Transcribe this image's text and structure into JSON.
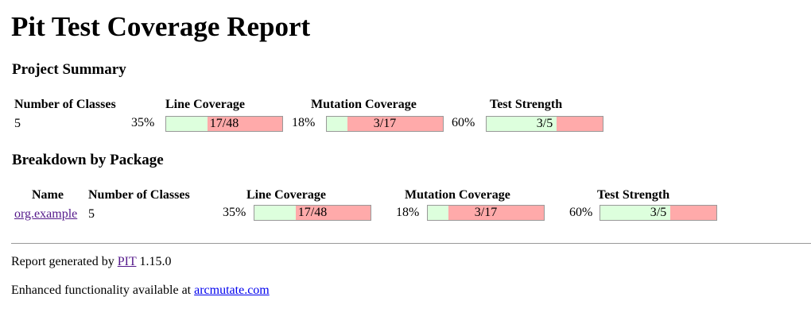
{
  "title": "Pit Test Coverage Report",
  "project_summary": {
    "heading": "Project Summary",
    "headers": {
      "classes": "Number of Classes",
      "line": "Line Coverage",
      "mutation": "Mutation Coverage",
      "strength": "Test Strength"
    },
    "classes": "5",
    "line": {
      "percent": "35%",
      "ratio": "17/48",
      "fraction": 0.354
    },
    "mutation": {
      "percent": "18%",
      "ratio": "3/17",
      "fraction": 0.176
    },
    "strength": {
      "percent": "60%",
      "ratio": "3/5",
      "fraction": 0.6
    }
  },
  "breakdown": {
    "heading": "Breakdown by Package",
    "headers": {
      "name": "Name",
      "classes": "Number of Classes",
      "line": "Line Coverage",
      "mutation": "Mutation Coverage",
      "strength": "Test Strength"
    },
    "rows": [
      {
        "name": "org.example",
        "classes": "5",
        "line": {
          "percent": "35%",
          "ratio": "17/48",
          "fraction": 0.354
        },
        "mutation": {
          "percent": "18%",
          "ratio": "3/17",
          "fraction": 0.176
        },
        "strength": {
          "percent": "60%",
          "ratio": "3/5",
          "fraction": 0.6
        }
      }
    ]
  },
  "footer": {
    "generated_prefix": "Report generated by",
    "pit_link": "PIT",
    "version": "1.15.0",
    "enhanced_prefix": "Enhanced functionality available at",
    "arcmutate_link": "arcmutate.com"
  },
  "colors": {
    "covered": "#ddffdd",
    "uncovered": "#ffaaaa",
    "border": "#999999"
  }
}
